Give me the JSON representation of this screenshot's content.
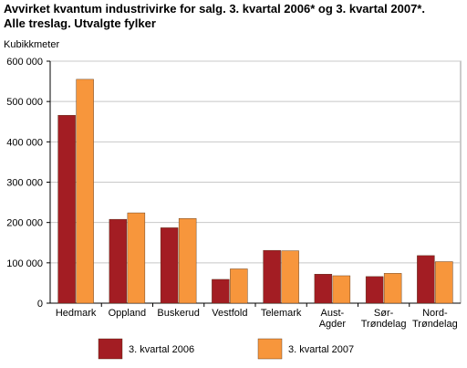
{
  "title_line1": "Avvirket kvantum industrivirke for salg. 3. kvartal 2006* og 3. kvartal 2007*.",
  "title_line2": "Alle treslag. Utvalgte fylker",
  "chart_data": {
    "type": "bar",
    "ylabel": "Kubikkmeter",
    "xlabel": "",
    "ylim": [
      0,
      600000
    ],
    "yticks": [
      0,
      100000,
      200000,
      300000,
      400000,
      500000,
      600000
    ],
    "ytick_labels": [
      "0",
      "100 000",
      "200 000",
      "300 000",
      "400 000",
      "500 000",
      "600 000"
    ],
    "grid": true,
    "legend_position": "bottom",
    "categories": [
      [
        "Hedmark"
      ],
      [
        "Oppland"
      ],
      [
        "Buskerud"
      ],
      [
        "Vestfold"
      ],
      [
        "Telemark"
      ],
      [
        "Aust-",
        "Agder"
      ],
      [
        "Sør-",
        "Trøndelag"
      ],
      [
        "Nord-",
        "Trøndelag"
      ]
    ],
    "series": [
      {
        "name": "3. kvartal 2006",
        "color": "#a31d23",
        "values": [
          466000,
          208000,
          187000,
          59000,
          131000,
          72000,
          66000,
          118000
        ]
      },
      {
        "name": "3. kvartal 2007",
        "color": "#f7963c",
        "values": [
          555000,
          224000,
          210000,
          85000,
          130000,
          68000,
          74000,
          103000
        ]
      }
    ]
  }
}
